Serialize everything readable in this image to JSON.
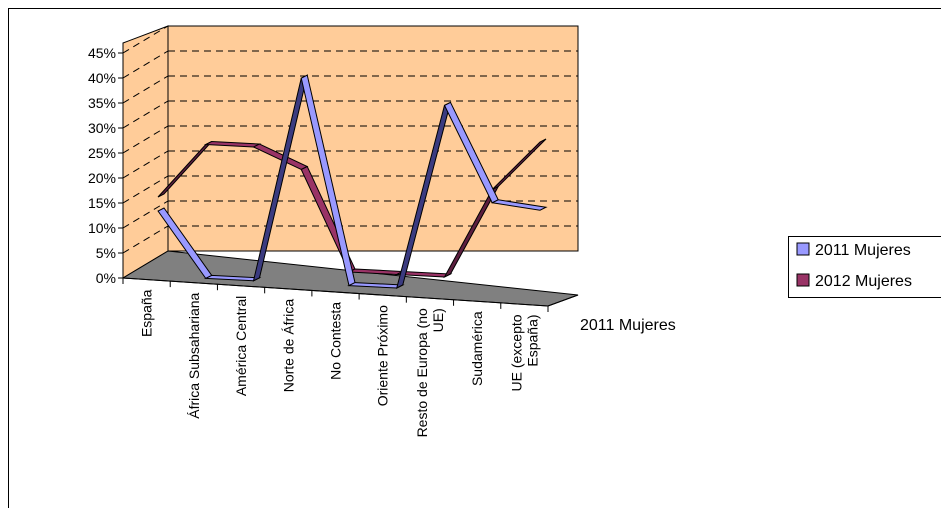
{
  "chart_data": {
    "type": "line",
    "style": "3d-ribbon",
    "categories": [
      [
        "España"
      ],
      [
        "África Subsahariana"
      ],
      [
        "América Central"
      ],
      [
        "Norte de África"
      ],
      [
        "No Contesta"
      ],
      [
        "Oriente Próximo"
      ],
      [
        "Resto de Europa (no",
        "UE)"
      ],
      [
        "Sudamérica"
      ],
      [
        "UE (excepto",
        "España)"
      ]
    ],
    "series": [
      {
        "name": "2011 Mujeres",
        "color": "#9999FF",
        "values": [
          13,
          0,
          0,
          41,
          0,
          0,
          37,
          18,
          17
        ]
      },
      {
        "name": "2012 Mujeres",
        "color": "#993366",
        "values": [
          13,
          24,
          24,
          20,
          0,
          0,
          0,
          18,
          28
        ]
      }
    ],
    "ylim": [
      0,
      45
    ],
    "yticks": [
      "0%",
      "5%",
      "10%",
      "15%",
      "20%",
      "25%",
      "30%",
      "35%",
      "40%",
      "45%"
    ],
    "depth_axis_label": "2011 Mujeres",
    "wall_color": "#FFCC99",
    "floor_color": "#808080",
    "grid": true,
    "legend_position": "right"
  }
}
